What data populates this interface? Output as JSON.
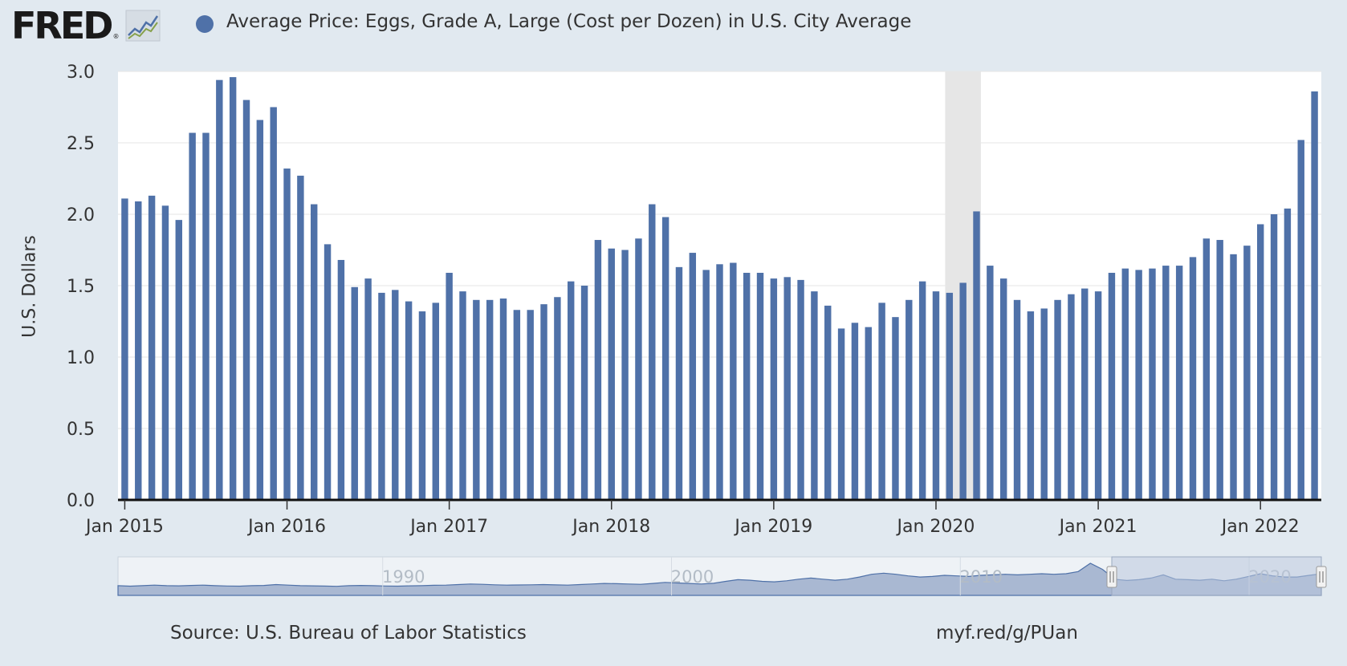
{
  "header": {
    "logo_text": "FRED",
    "logo_reg": "®",
    "series_title": "Average Price: Eggs, Grade A, Large (Cost per Dozen) in U.S. City Average"
  },
  "colors": {
    "bar": "#4f71a8",
    "background": "#e1e9f0",
    "plot_background": "#ffffff",
    "recession": "#e6e6e6",
    "navigator_fill": "#a9b8d2",
    "navigator_mask": "#b9c7dd"
  },
  "footer": {
    "source": "Source: U.S. Bureau of Labor Statistics",
    "link": "myf.red/g/PUan"
  },
  "chart_data": {
    "type": "bar",
    "ylabel": "U.S. Dollars",
    "ylim": [
      0,
      3.0
    ],
    "yticks": [
      "0.0",
      "0.5",
      "1.0",
      "1.5",
      "2.0",
      "2.5",
      "3.0"
    ],
    "xtick_labels": [
      "Jan 2015",
      "Jan 2016",
      "Jan 2017",
      "Jan 2018",
      "Jan 2019",
      "Jan 2020",
      "Jan 2021",
      "Jan 2022"
    ],
    "grid": true,
    "start": "2015-01",
    "end": "2022-05",
    "recession": [
      "2020-02",
      "2020-04"
    ],
    "series": [
      {
        "name": "Average Price: Eggs, Grade A, Large (Cost per Dozen) in U.S. City Average",
        "values": [
          2.11,
          2.09,
          2.13,
          2.06,
          1.96,
          2.57,
          2.57,
          2.94,
          2.96,
          2.8,
          2.66,
          2.75,
          2.32,
          2.27,
          2.07,
          1.79,
          1.68,
          1.49,
          1.55,
          1.45,
          1.47,
          1.39,
          1.32,
          1.38,
          1.59,
          1.46,
          1.4,
          1.4,
          1.41,
          1.33,
          1.33,
          1.37,
          1.42,
          1.53,
          1.5,
          1.82,
          1.76,
          1.75,
          1.83,
          2.07,
          1.98,
          1.63,
          1.73,
          1.61,
          1.65,
          1.66,
          1.59,
          1.59,
          1.55,
          1.56,
          1.54,
          1.46,
          1.36,
          1.2,
          1.24,
          1.21,
          1.38,
          1.28,
          1.4,
          1.53,
          1.46,
          1.45,
          1.52,
          2.02,
          1.64,
          1.55,
          1.4,
          1.32,
          1.34,
          1.4,
          1.44,
          1.48,
          1.46,
          1.59,
          1.62,
          1.61,
          1.62,
          1.64,
          1.64,
          1.7,
          1.83,
          1.82,
          1.72,
          1.78,
          1.93,
          2.0,
          2.04,
          2.52,
          2.86
        ]
      }
    ]
  },
  "navigator": {
    "year_labels": [
      "1990",
      "2000",
      "2010",
      "2020"
    ],
    "series": [
      0.9,
      0.85,
      0.9,
      0.95,
      0.9,
      0.88,
      0.92,
      0.95,
      0.9,
      0.87,
      0.85,
      0.9,
      0.92,
      1.0,
      0.95,
      0.9,
      0.88,
      0.86,
      0.84,
      0.9,
      0.92,
      0.9,
      0.87,
      0.85,
      0.88,
      0.9,
      0.93,
      0.95,
      1.0,
      1.05,
      1.02,
      0.98,
      0.95,
      0.96,
      0.98,
      1.0,
      0.97,
      0.95,
      1.0,
      1.05,
      1.1,
      1.08,
      1.05,
      1.02,
      1.1,
      1.2,
      1.15,
      1.1,
      1.05,
      1.12,
      1.3,
      1.45,
      1.4,
      1.3,
      1.25,
      1.35,
      1.5,
      1.6,
      1.5,
      1.4,
      1.5,
      1.7,
      1.95,
      2.05,
      1.95,
      1.8,
      1.7,
      1.75,
      1.85,
      1.8,
      1.75,
      1.85,
      1.9,
      1.95,
      1.9,
      1.95,
      2.0,
      1.95,
      2.0,
      2.2,
      2.96,
      2.4,
      1.5,
      1.38,
      1.45,
      1.6,
      1.9,
      1.5,
      1.45,
      1.4,
      1.5,
      1.35,
      1.5,
      1.75,
      2.0,
      1.8,
      1.7,
      1.7,
      1.85,
      2.0
    ]
  }
}
